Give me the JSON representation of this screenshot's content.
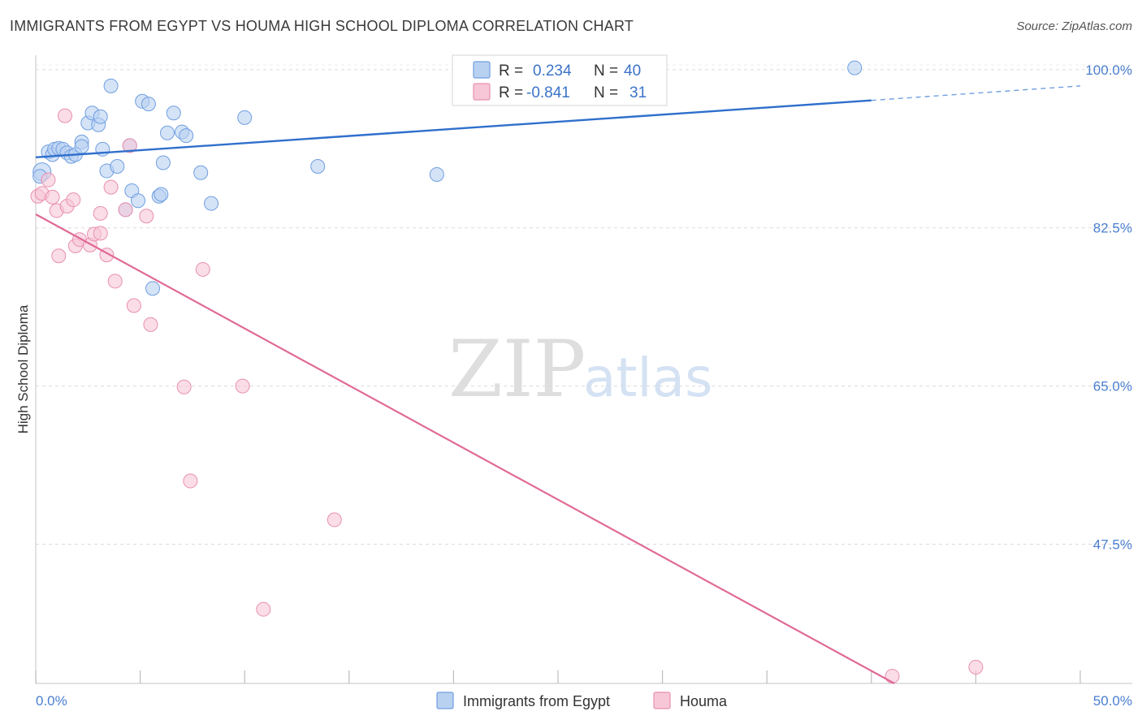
{
  "title": "IMMIGRANTS FROM EGYPT VS HOUMA HIGH SCHOOL DIPLOMA CORRELATION CHART",
  "source": "Source: ZipAtlas.com",
  "watermark": {
    "zip": "ZIP",
    "atlas": "atlas"
  },
  "colors": {
    "blue_fill": "#b9d1f1",
    "blue_stroke": "#6f9fe0",
    "blue_line": "#2f6fcc",
    "pink_fill": "#f7c7d7",
    "pink_stroke": "#e98fb0",
    "pink_line": "#e06a96",
    "grid": "#dcdcdc",
    "axis_tick_text": "#4a7fd0"
  },
  "legend": {
    "r_label": "R =",
    "n_label": "N =",
    "rows": [
      {
        "r": "0.234",
        "n": "40"
      },
      {
        "r": "-0.841",
        "n": "31"
      }
    ]
  },
  "chart_data": {
    "type": "scatter",
    "title": "IMMIGRANTS FROM EGYPT VS HOUMA HIGH SCHOOL DIPLOMA CORRELATION CHART",
    "xlabel": "",
    "ylabel": "High School Diploma",
    "xlim": [
      0,
      50
    ],
    "ylim": [
      32.1,
      101.6
    ],
    "x_tick_labels": [
      "0.0%",
      "50.0%"
    ],
    "y_ticks": [
      100.0,
      82.5,
      65.0,
      47.5
    ],
    "y_tick_labels": [
      "100.0%",
      "82.5%",
      "65.0%",
      "47.5%"
    ],
    "x_minor_ticks": [
      0,
      5,
      10,
      15,
      20,
      25,
      30,
      35,
      40,
      45,
      50
    ],
    "series": [
      {
        "name": "Immigrants from Egypt",
        "color": "#6f9fe0",
        "trend": {
          "x0": 0,
          "y0": 90.3,
          "x1": 40,
          "y1": 96.6,
          "dashed_to": 50,
          "dashed_y": 98.2
        },
        "points": [
          [
            0.3,
            88.7
          ],
          [
            0.6,
            90.9
          ],
          [
            0.8,
            90.6
          ],
          [
            0.9,
            91.2
          ],
          [
            1.1,
            91.3
          ],
          [
            1.3,
            91.2
          ],
          [
            1.5,
            90.8
          ],
          [
            1.7,
            90.4
          ],
          [
            1.9,
            90.6
          ],
          [
            2.2,
            92.0
          ],
          [
            2.2,
            91.5
          ],
          [
            2.5,
            94.1
          ],
          [
            2.7,
            95.2
          ],
          [
            3.0,
            93.9
          ],
          [
            3.1,
            94.8
          ],
          [
            3.2,
            91.2
          ],
          [
            3.4,
            88.8
          ],
          [
            3.6,
            98.2
          ],
          [
            3.9,
            89.3
          ],
          [
            4.3,
            84.5
          ],
          [
            4.5,
            91.6
          ],
          [
            4.6,
            86.6
          ],
          [
            4.9,
            85.5
          ],
          [
            5.1,
            96.5
          ],
          [
            5.4,
            96.2
          ],
          [
            5.9,
            86.0
          ],
          [
            6.1,
            89.7
          ],
          [
            6.3,
            93.0
          ],
          [
            6.6,
            95.2
          ],
          [
            7.0,
            93.1
          ],
          [
            7.2,
            92.7
          ],
          [
            7.9,
            88.6
          ],
          [
            8.4,
            85.2
          ],
          [
            10.0,
            94.7
          ],
          [
            13.5,
            89.3
          ],
          [
            19.2,
            88.4
          ],
          [
            39.2,
            100.2
          ],
          [
            5.6,
            75.8
          ],
          [
            0.2,
            88.2
          ],
          [
            6.0,
            86.2
          ]
        ]
      },
      {
        "name": "Houma",
        "color": "#e98fb0",
        "trend": {
          "x0": 0,
          "y0": 84.0,
          "x1": 41.1,
          "y1": 32.1
        },
        "points": [
          [
            0.1,
            86.0
          ],
          [
            0.3,
            86.3
          ],
          [
            0.6,
            87.8
          ],
          [
            0.8,
            85.9
          ],
          [
            1.0,
            84.4
          ],
          [
            1.1,
            79.4
          ],
          [
            1.4,
            94.9
          ],
          [
            1.5,
            84.9
          ],
          [
            1.8,
            85.6
          ],
          [
            1.9,
            80.5
          ],
          [
            2.1,
            81.2
          ],
          [
            2.6,
            80.6
          ],
          [
            2.8,
            81.8
          ],
          [
            3.1,
            84.1
          ],
          [
            3.1,
            81.9
          ],
          [
            3.4,
            79.5
          ],
          [
            3.6,
            87.0
          ],
          [
            3.8,
            76.6
          ],
          [
            4.3,
            84.5
          ],
          [
            4.5,
            91.6
          ],
          [
            4.7,
            73.9
          ],
          [
            5.3,
            83.8
          ],
          [
            5.5,
            71.8
          ],
          [
            7.1,
            64.9
          ],
          [
            7.4,
            54.5
          ],
          [
            8.0,
            77.9
          ],
          [
            9.9,
            65.0
          ],
          [
            10.9,
            40.3
          ],
          [
            14.3,
            50.2
          ],
          [
            41.0,
            32.9
          ],
          [
            45.0,
            33.9
          ]
        ]
      }
    ]
  }
}
